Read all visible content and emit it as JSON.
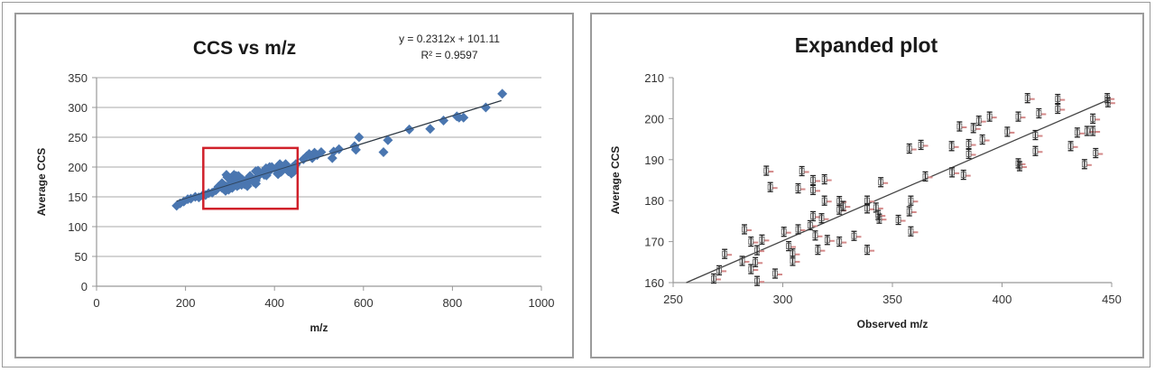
{
  "chart_data": [
    {
      "type": "scatter",
      "title": "CCS vs m/z",
      "xlabel": "m/z",
      "ylabel": "Average CCS",
      "xlim": [
        0,
        1000
      ],
      "ylim": [
        0,
        350
      ],
      "xticks": [
        0,
        200,
        400,
        600,
        800,
        1000
      ],
      "yticks": [
        0,
        50,
        100,
        150,
        200,
        250,
        300,
        350
      ],
      "grid": "horizontal",
      "marker": "diamond",
      "marker_color": "#4a76b0",
      "trendline": {
        "type": "linear",
        "slope": 0.2312,
        "intercept": 101.11,
        "x_range": [
          180,
          910
        ],
        "color": "#333333"
      },
      "annotations": {
        "equation": "y = 0.2312x + 101.11",
        "r_squared": "R² = 0.9597",
        "highlight_box": {
          "x": [
            240,
            452
          ],
          "y": [
            130,
            232
          ],
          "color": "#d0202a"
        }
      },
      "series": [
        {
          "name": "CCS",
          "points": [
            [
              180,
              135
            ],
            [
              188,
              139
            ],
            [
              196,
              142
            ],
            [
              205,
              146
            ],
            [
              212,
              147
            ],
            [
              222,
              150
            ],
            [
              230,
              149
            ],
            [
              238,
              152
            ],
            [
              245,
              153
            ],
            [
              252,
              156
            ],
            [
              260,
              157
            ],
            [
              268,
              161
            ],
            [
              271,
              163
            ],
            [
              274,
              167
            ],
            [
              282,
              173
            ],
            [
              282,
              165
            ],
            [
              286,
              170
            ],
            [
              286,
              163
            ],
            [
              288,
              165
            ],
            [
              290,
              168
            ],
            [
              290,
              160
            ],
            [
              292,
              187
            ],
            [
              294,
              183
            ],
            [
              297,
              162
            ],
            [
              300,
              172
            ],
            [
              303,
              169
            ],
            [
              305,
              167
            ],
            [
              305,
              165
            ],
            [
              307,
              173
            ],
            [
              307,
              183
            ],
            [
              309,
              187
            ],
            [
              313,
              174
            ],
            [
              314,
              185
            ],
            [
              314,
              183
            ],
            [
              314,
              176
            ],
            [
              315,
              171
            ],
            [
              316,
              168
            ],
            [
              318,
              176
            ],
            [
              319,
              185
            ],
            [
              319,
              180
            ],
            [
              320,
              170
            ],
            [
              326,
              180
            ],
            [
              326,
              178
            ],
            [
              326,
              170
            ],
            [
              328,
              179
            ],
            [
              333,
              171
            ],
            [
              339,
              180
            ],
            [
              339,
              178
            ],
            [
              339,
              168
            ],
            [
              343,
              178
            ],
            [
              344,
              176
            ],
            [
              345,
              185
            ],
            [
              353,
              175
            ],
            [
              358,
              193
            ],
            [
              358,
              177
            ],
            [
              358,
              180
            ],
            [
              358,
              172
            ],
            [
              363,
              194
            ],
            [
              365,
              186
            ],
            [
              377,
              193
            ],
            [
              377,
              187
            ],
            [
              381,
              198
            ],
            [
              382,
              186
            ],
            [
              385,
              194
            ],
            [
              385,
              191
            ],
            [
              387,
              198
            ],
            [
              389,
              200
            ],
            [
              391,
              195
            ],
            [
              394,
              200
            ],
            [
              402,
              197
            ],
            [
              407,
              200
            ],
            [
              407,
              189
            ],
            [
              408,
              188
            ],
            [
              412,
              205
            ],
            [
              415,
              196
            ],
            [
              415,
              192
            ],
            [
              417,
              201
            ],
            [
              425,
              205
            ],
            [
              425,
              202
            ],
            [
              431,
              193
            ],
            [
              434,
              197
            ],
            [
              438,
              189
            ],
            [
              439,
              197
            ],
            [
              441,
              197
            ],
            [
              441,
              200
            ],
            [
              443,
              192
            ],
            [
              448,
              205
            ],
            [
              448,
              204
            ],
            [
              465,
              213
            ],
            [
              472,
              218
            ],
            [
              478,
              222
            ],
            [
              485,
              215
            ],
            [
              490,
              224
            ],
            [
              496,
              220
            ],
            [
              505,
              225
            ],
            [
              530,
              215
            ],
            [
              533,
              226
            ],
            [
              545,
              230
            ],
            [
              580,
              235
            ],
            [
              583,
              229
            ],
            [
              590,
              250
            ],
            [
              645,
              225
            ],
            [
              655,
              245
            ],
            [
              703,
              263
            ],
            [
              750,
              264
            ],
            [
              780,
              278
            ],
            [
              810,
              285
            ],
            [
              815,
              283
            ],
            [
              825,
              283
            ],
            [
              875,
              300
            ],
            [
              912,
              323
            ]
          ]
        }
      ]
    },
    {
      "type": "scatter",
      "title": "Expanded plot",
      "xlabel": "Observed m/z",
      "ylabel": "Average CCS",
      "xlim": [
        250,
        450
      ],
      "ylim": [
        160,
        210
      ],
      "xticks": [
        250,
        300,
        350,
        400,
        450
      ],
      "yticks": [
        160,
        170,
        180,
        190,
        200,
        210
      ],
      "grid": "none",
      "marker": "error-bar glyph (black I-beam with pink tail)",
      "marker_color": "#222222",
      "marker_accent": "#d48a8a",
      "trendline": {
        "type": "linear",
        "x_range": [
          256,
          448
        ],
        "y_range": [
          160,
          204.5
        ],
        "color": "#444444"
      },
      "series": [
        {
          "name": "CCS",
          "points": [
            [
              268.5,
              161
            ],
            [
              271,
              163
            ],
            [
              273.5,
              167
            ],
            [
              282.5,
              173
            ],
            [
              281.5,
              165.3
            ],
            [
              285.5,
              170
            ],
            [
              285.5,
              163.3
            ],
            [
              287.5,
              165
            ],
            [
              288.3,
              167.9
            ],
            [
              288.3,
              160.4
            ],
            [
              290.5,
              170.5
            ],
            [
              292.5,
              187.3
            ],
            [
              294.3,
              183.3
            ],
            [
              296.5,
              162.2
            ],
            [
              300.5,
              172.4
            ],
            [
              302.7,
              168.9
            ],
            [
              304.5,
              167.1
            ],
            [
              304.5,
              165.3
            ],
            [
              307,
              173
            ],
            [
              307,
              183
            ],
            [
              308.7,
              187.2
            ],
            [
              312.5,
              174
            ],
            [
              313.8,
              185
            ],
            [
              313.8,
              182.6
            ],
            [
              313.8,
              176.2
            ],
            [
              314.8,
              171.5
            ],
            [
              316,
              168
            ],
            [
              317.7,
              175.7
            ],
            [
              319,
              185.2
            ],
            [
              319,
              180
            ],
            [
              320.3,
              170.4
            ],
            [
              325.8,
              179.9
            ],
            [
              325.8,
              177.8
            ],
            [
              325.8,
              170
            ],
            [
              327.5,
              178.7
            ],
            [
              332.5,
              171.4
            ],
            [
              338.5,
              180
            ],
            [
              338.5,
              178.1
            ],
            [
              338.5,
              168
            ],
            [
              342.5,
              178.3
            ],
            [
              343.5,
              176.5
            ],
            [
              344,
              175.6
            ],
            [
              344.7,
              184.5
            ],
            [
              352.7,
              175.3
            ],
            [
              357.7,
              192.7
            ],
            [
              357.7,
              177.4
            ],
            [
              358.4,
              180
            ],
            [
              358.4,
              172.5
            ],
            [
              363,
              193.6
            ],
            [
              365,
              185.9
            ],
            [
              377,
              193.3
            ],
            [
              377.2,
              186.9
            ],
            [
              380.6,
              198.1
            ],
            [
              382.4,
              186.3
            ],
            [
              384.8,
              193.8
            ],
            [
              384.8,
              191.4
            ],
            [
              386.9,
              197.7
            ],
            [
              389.4,
              199.5
            ],
            [
              391,
              194.9
            ],
            [
              394.3,
              200.5
            ],
            [
              402.4,
              196.8
            ],
            [
              407.4,
              200.5
            ],
            [
              407.4,
              189.1
            ],
            [
              408,
              188.4
            ],
            [
              411.6,
              205
            ],
            [
              415.2,
              196
            ],
            [
              415.2,
              192.1
            ],
            [
              416.8,
              201.3
            ],
            [
              425.4,
              204.8
            ],
            [
              425.4,
              202.4
            ],
            [
              431.3,
              193.3
            ],
            [
              434.3,
              196.6
            ],
            [
              437.6,
              188.9
            ],
            [
              438.8,
              197
            ],
            [
              441.4,
              197
            ],
            [
              441.4,
              200
            ],
            [
              442.7,
              191.6
            ],
            [
              448,
              205
            ],
            [
              448.3,
              204
            ]
          ]
        }
      ]
    }
  ]
}
